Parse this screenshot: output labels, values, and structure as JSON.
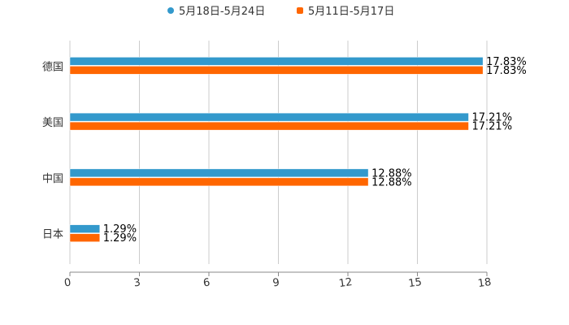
{
  "chart_data": {
    "type": "bar",
    "orientation": "horizontal",
    "categories": [
      "德国",
      "美国",
      "中国",
      "日本"
    ],
    "series": [
      {
        "name": "5月18日-5月24日",
        "color": "#3399cc",
        "values": [
          17.83,
          17.21,
          12.88,
          1.29
        ],
        "labels": [
          "17.83%",
          "17.21%",
          "12.88%",
          "1.29%"
        ]
      },
      {
        "name": "5月11日-5月17日",
        "color": "#ff6600",
        "values": [
          17.83,
          17.21,
          12.88,
          1.29
        ],
        "labels": [
          "17.83%",
          "17.21%",
          "12.88%",
          "1.29%"
        ]
      }
    ],
    "xlim": [
      0,
      18
    ],
    "xticks": [
      "0",
      "3",
      "6",
      "9",
      "12",
      "15",
      "18"
    ],
    "grid": true,
    "legend": "top-center"
  }
}
